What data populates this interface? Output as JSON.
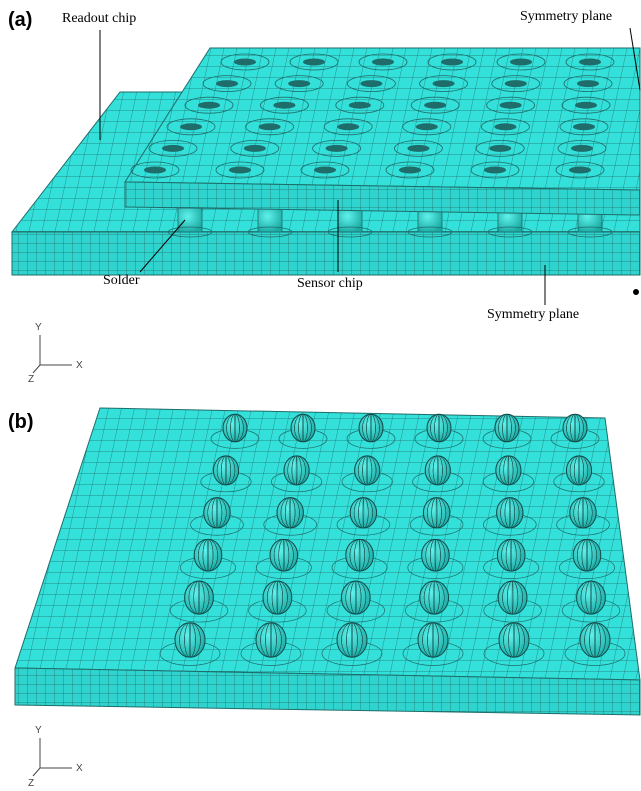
{
  "panels": [
    {
      "label": "(a)",
      "annotations": {
        "readout": "Readout chip",
        "symmetry_top": "Symmetry plane",
        "solder": "Solder",
        "sensor": "Sensor chip",
        "symmetry_front": "Symmetry plane"
      },
      "triad": {
        "y": "Y",
        "x": "X",
        "z": "Z"
      }
    },
    {
      "label": "(b)",
      "triad": {
        "y": "Y",
        "x": "X",
        "z": "Z"
      }
    }
  ]
}
